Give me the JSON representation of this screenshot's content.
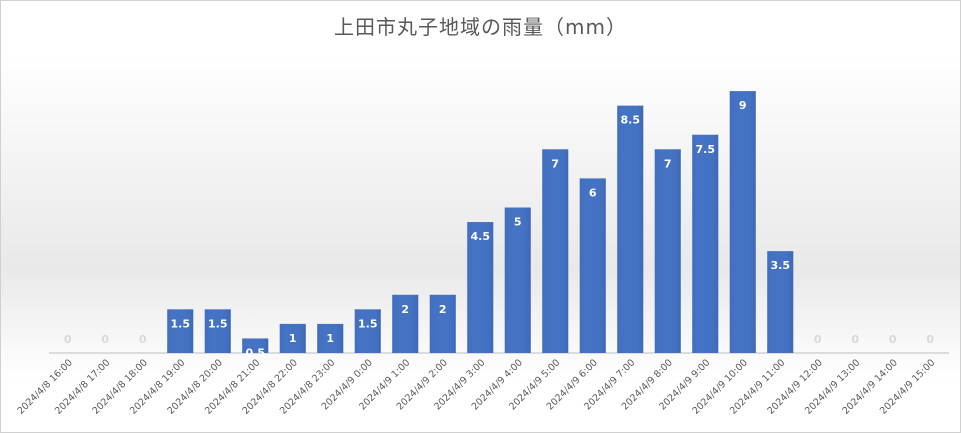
{
  "chart_data": {
    "type": "bar",
    "title": "上田市丸子地域の雨量（mm）",
    "xlabel": "",
    "ylabel": "",
    "ylim": [
      0,
      10
    ],
    "grid": false,
    "legend": "none",
    "categories": [
      "2024/4/8 16:00",
      "2024/4/8 17:00",
      "2024/4/8 18:00",
      "2024/4/8 19:00",
      "2024/4/8 20:00",
      "2024/4/8 21:00",
      "2024/4/8 22:00",
      "2024/4/8 23:00",
      "2024/4/9 0:00",
      "2024/4/9 1:00",
      "2024/4/9 2:00",
      "2024/4/9 3:00",
      "2024/4/9 4:00",
      "2024/4/9 5:00",
      "2024/4/9 6:00",
      "2024/4/9 7:00",
      "2024/4/9 8:00",
      "2024/4/9 9:00",
      "2024/4/9 10:00",
      "2024/4/9 11:00",
      "2024/4/9 12:00",
      "2024/4/9 13:00",
      "2024/4/9 14:00",
      "2024/4/9 15:00"
    ],
    "values": [
      0,
      0,
      0,
      1.5,
      1.5,
      0.5,
      1,
      1,
      1.5,
      2,
      2,
      4.5,
      5,
      7,
      6,
      8.5,
      7,
      7.5,
      9,
      3.5,
      0,
      0,
      0,
      0
    ],
    "data_labels": [
      "0",
      "0",
      "0",
      "1.5",
      "1.5",
      "0.5",
      "1",
      "1",
      "1.5",
      "2",
      "2",
      "4.5",
      "5",
      "7",
      "6",
      "8.5",
      "7",
      "7.5",
      "9",
      "3.5",
      "0",
      "0",
      "0",
      "0"
    ],
    "colors": {
      "bar": "#4472c4",
      "label": "#ffffff",
      "zero_label": "#d9d9d9",
      "title": "#595959"
    }
  }
}
